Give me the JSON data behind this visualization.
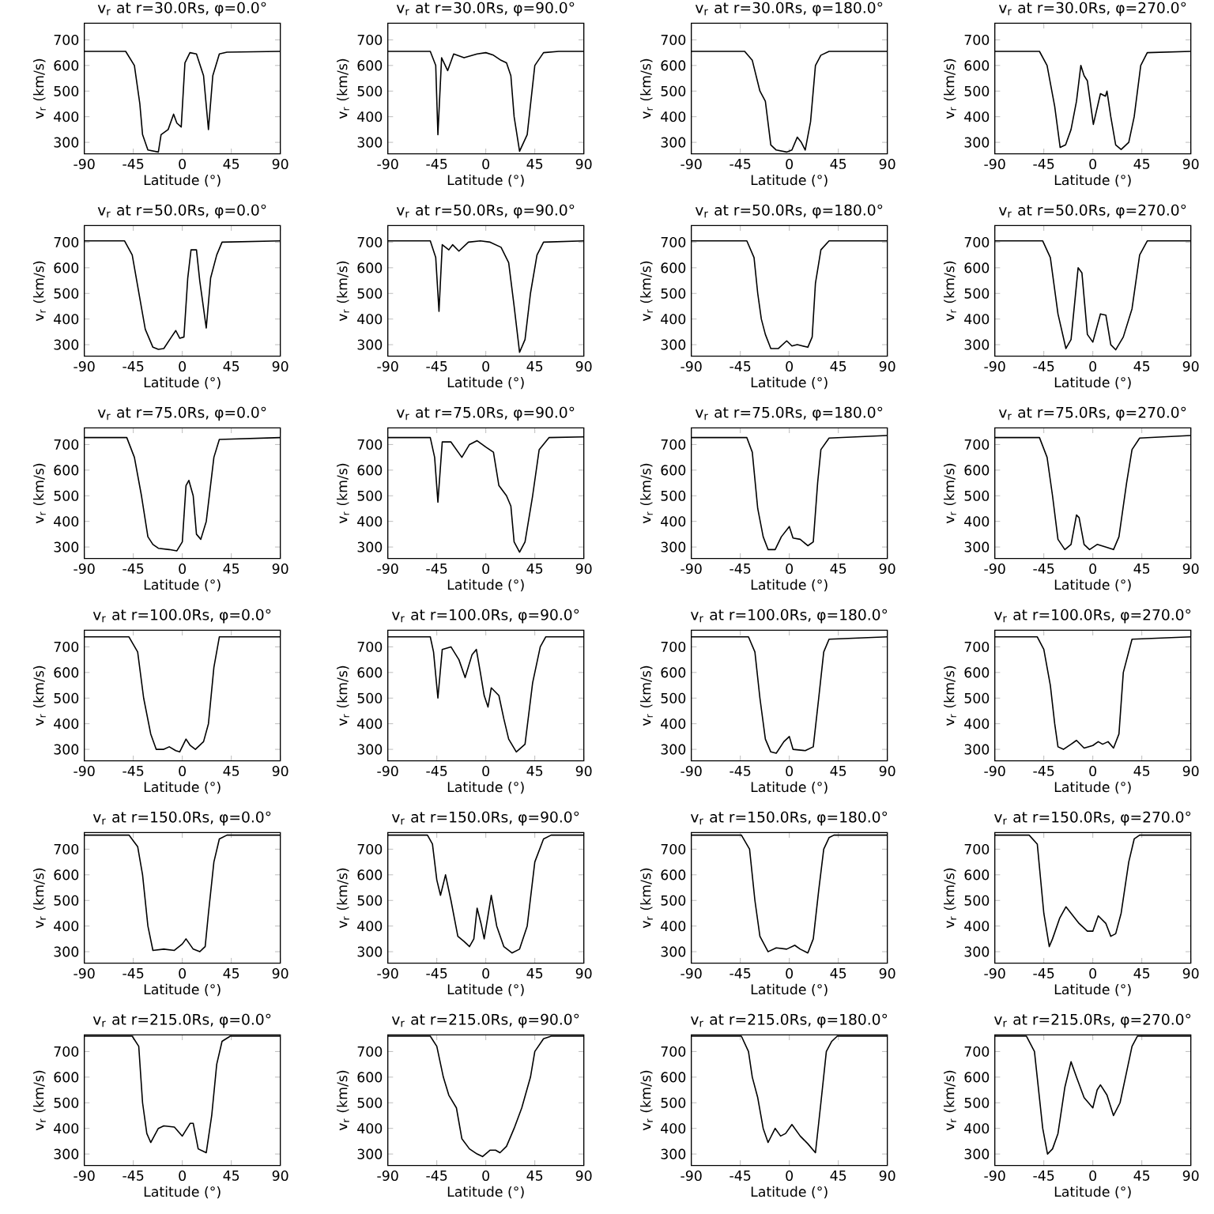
{
  "chart_data": [
    {
      "type": "line",
      "title": "v$_{r}$ at r=30.0Rs, φ=0.0°",
      "xlabel": "Latitude (°)",
      "ylabel": "v$_{r}$ (km/s)",
      "color": "#000000",
      "xlim": [
        -90,
        90
      ],
      "xticks": [
        -90,
        -45,
        0,
        45,
        90
      ],
      "ylim": [
        255,
        765
      ],
      "yticks": [
        300,
        400,
        500,
        600,
        700
      ],
      "x": [
        -90,
        -52,
        -44,
        -39,
        -36.5,
        -31.6,
        -22,
        -19.5,
        -13,
        -8,
        -5,
        -1,
        2.4,
        7,
        13,
        19.5,
        24,
        28,
        34,
        41,
        90
      ],
      "values": [
        655,
        655,
        600,
        450,
        330,
        270,
        262,
        330,
        350,
        410,
        375,
        360,
        610,
        650,
        645,
        560,
        350,
        560,
        645,
        652,
        655
      ]
    },
    {
      "type": "line",
      "title": "v$_{r}$ at r=30.0Rs, φ=90.0°",
      "xlabel": "Latitude (°)",
      "ylabel": "v$_{r}$ (km/s)",
      "color": "#000000",
      "xlim": [
        -90,
        90
      ],
      "xticks": [
        -90,
        -45,
        0,
        45,
        90
      ],
      "ylim": [
        255,
        765
      ],
      "yticks": [
        300,
        400,
        500,
        600,
        700
      ],
      "x": [
        -90,
        -51,
        -46,
        -44,
        -40.6,
        -35,
        -29.5,
        -20,
        -8,
        0,
        7,
        14,
        19,
        23,
        26,
        31,
        38,
        45,
        53,
        67,
        90
      ],
      "values": [
        655,
        655,
        600,
        330,
        630,
        580,
        645,
        630,
        645,
        650,
        640,
        620,
        610,
        560,
        400,
        265,
        330,
        600,
        650,
        655,
        655
      ]
    },
    {
      "type": "line",
      "title": "v$_{r}$ at r=30.0Rs, φ=180.0°",
      "xlabel": "Latitude (°)",
      "ylabel": "v$_{r}$ (km/s)",
      "color": "#000000",
      "xlim": [
        -90,
        90
      ],
      "xticks": [
        -90,
        -45,
        0,
        45,
        90
      ],
      "ylim": [
        255,
        765
      ],
      "yticks": [
        300,
        400,
        500,
        600,
        700
      ],
      "x": [
        -90,
        -41,
        -34,
        -27,
        -22,
        -17,
        -12,
        -2.4,
        2.4,
        7.3,
        11,
        14.6,
        19.5,
        24,
        29,
        36.5,
        90
      ],
      "values": [
        655,
        655,
        620,
        500,
        460,
        290,
        270,
        262,
        270,
        320,
        300,
        270,
        380,
        600,
        640,
        655,
        655
      ]
    },
    {
      "type": "line",
      "title": "v$_{r}$ at r=30.0Rs, φ=270.0°",
      "xlabel": "Latitude (°)",
      "ylabel": "v$_{r}$ (km/s)",
      "color": "#000000",
      "xlim": [
        -90,
        90
      ],
      "xticks": [
        -90,
        -45,
        0,
        45,
        90
      ],
      "ylim": [
        255,
        765
      ],
      "yticks": [
        300,
        400,
        500,
        600,
        700
      ],
      "x": [
        -90,
        -49,
        -42,
        -35,
        -30,
        -25,
        -20,
        -15,
        -11,
        -8,
        -5,
        0.5,
        7,
        11.6,
        13,
        16.5,
        21,
        26,
        33,
        38,
        44,
        50,
        90
      ],
      "values": [
        655,
        655,
        600,
        440,
        280,
        290,
        350,
        460,
        600,
        560,
        540,
        370,
        490,
        480,
        500,
        400,
        290,
        272,
        300,
        400,
        600,
        650,
        655
      ]
    },
    {
      "type": "line",
      "title": "v$_{r}$ at r=50.0Rs, φ=0.0°",
      "xlabel": "Latitude (°)",
      "ylabel": "v$_{r}$ (km/s)",
      "color": "#000000",
      "xlim": [
        -90,
        90
      ],
      "xticks": [
        -90,
        -45,
        0,
        45,
        90
      ],
      "ylim": [
        255,
        765
      ],
      "yticks": [
        300,
        400,
        500,
        600,
        700
      ],
      "x": [
        -90,
        -53,
        -46,
        -39,
        -34,
        -27,
        -22,
        -17,
        -10,
        -6,
        -2.4,
        1.5,
        5,
        8,
        13,
        16,
        22,
        26,
        31.6,
        36.5,
        90
      ],
      "values": [
        705,
        705,
        650,
        480,
        360,
        290,
        282,
        285,
        330,
        355,
        325,
        330,
        560,
        670,
        670,
        550,
        365,
        560,
        650,
        700,
        705
      ]
    },
    {
      "type": "line",
      "title": "v$_{r}$ at r=50.0Rs, φ=90.0°",
      "xlabel": "Latitude (°)",
      "ylabel": "v$_{r}$ (km/s)",
      "color": "#000000",
      "xlim": [
        -90,
        90
      ],
      "xticks": [
        -90,
        -45,
        0,
        45,
        90
      ],
      "ylim": [
        255,
        765
      ],
      "yticks": [
        300,
        400,
        500,
        600,
        700
      ],
      "x": [
        -90,
        -51,
        -46,
        -43,
        -40,
        -34,
        -30.5,
        -24.7,
        -16,
        -5,
        4,
        14,
        21,
        26,
        31,
        36,
        41,
        47,
        53,
        90
      ],
      "values": [
        705,
        705,
        640,
        430,
        690,
        670,
        690,
        665,
        700,
        705,
        700,
        680,
        620,
        450,
        270,
        320,
        500,
        650,
        700,
        705
      ]
    },
    {
      "type": "line",
      "title": "v$_{r}$ at r=50.0Rs, φ=180.0°",
      "xlabel": "Latitude (°)",
      "ylabel": "v$_{r}$ (km/s)",
      "color": "#000000",
      "xlim": [
        -90,
        90
      ],
      "xticks": [
        -90,
        -45,
        0,
        45,
        90
      ],
      "ylim": [
        255,
        765
      ],
      "yticks": [
        300,
        400,
        500,
        600,
        700
      ],
      "x": [
        -90,
        -39,
        -32.4,
        -29,
        -25.7,
        -22,
        -17,
        -10,
        -2.4,
        2.4,
        7.3,
        17,
        21,
        24,
        29,
        36.5,
        90
      ],
      "values": [
        705,
        705,
        640,
        500,
        400,
        340,
        285,
        285,
        315,
        295,
        300,
        290,
        330,
        540,
        670,
        705,
        705
      ]
    },
    {
      "type": "line",
      "title": "v$_{r}$ at r=50.0Rs, φ=270.0°",
      "xlabel": "Latitude (°)",
      "ylabel": "v$_{r}$ (km/s)",
      "color": "#000000",
      "xlim": [
        -90,
        90
      ],
      "xticks": [
        -90,
        -45,
        0,
        45,
        90
      ],
      "ylim": [
        255,
        765
      ],
      "yticks": [
        300,
        400,
        500,
        600,
        700
      ],
      "x": [
        -90,
        -46,
        -39,
        -32,
        -24.7,
        -20,
        -13.5,
        -10,
        -5,
        0,
        7,
        12,
        16.5,
        21,
        28,
        36,
        43,
        50,
        90
      ],
      "values": [
        705,
        705,
        640,
        420,
        285,
        320,
        600,
        580,
        340,
        310,
        420,
        415,
        300,
        280,
        330,
        440,
        650,
        705,
        705
      ]
    },
    {
      "type": "line",
      "title": "v$_{r}$ at r=75.0Rs, φ=0.0°",
      "xlabel": "Latitude (°)",
      "ylabel": "v$_{r}$ (km/s)",
      "color": "#000000",
      "xlim": [
        -90,
        90
      ],
      "xticks": [
        -90,
        -45,
        0,
        45,
        90
      ],
      "ylim": [
        255,
        765
      ],
      "yticks": [
        300,
        400,
        500,
        600,
        700
      ],
      "x": [
        -90,
        -51,
        -44,
        -37.5,
        -31.6,
        -27,
        -22,
        -12,
        -5,
        0,
        3.4,
        6,
        10,
        13,
        17,
        22,
        29,
        34,
        90
      ],
      "values": [
        727,
        727,
        650,
        500,
        340,
        310,
        295,
        290,
        285,
        320,
        540,
        560,
        500,
        350,
        330,
        400,
        650,
        720,
        727
      ]
    },
    {
      "type": "line",
      "title": "v$_{r}$ at r=75.0Rs, φ=90.0°",
      "xlabel": "Latitude (°)",
      "ylabel": "v$_{r}$ (km/s)",
      "color": "#000000",
      "xlim": [
        -90,
        90
      ],
      "xticks": [
        -90,
        -45,
        0,
        45,
        90
      ],
      "ylim": [
        255,
        765
      ],
      "yticks": [
        300,
        400,
        500,
        600,
        700
      ],
      "x": [
        -90,
        -51,
        -47,
        -44,
        -40,
        -32,
        -22,
        -15,
        -8,
        0,
        7,
        12,
        19,
        23,
        26,
        31,
        36,
        43,
        49,
        58,
        90
      ],
      "values": [
        727,
        727,
        650,
        475,
        710,
        710,
        650,
        700,
        715,
        690,
        670,
        540,
        500,
        460,
        320,
        280,
        320,
        500,
        680,
        727,
        730
      ]
    },
    {
      "type": "line",
      "title": "v$_{r}$ at r=75.0Rs, φ=180.0°",
      "xlabel": "Latitude (°)",
      "ylabel": "v$_{r}$ (km/s)",
      "color": "#000000",
      "xlim": [
        -90,
        90
      ],
      "xticks": [
        -90,
        -45,
        0,
        45,
        90
      ],
      "ylim": [
        255,
        765
      ],
      "yticks": [
        300,
        400,
        500,
        600,
        700
      ],
      "x": [
        -90,
        -39,
        -34,
        -29,
        -24,
        -19.5,
        -13,
        -7.3,
        0,
        3.4,
        10,
        17,
        22,
        26,
        29,
        36.5,
        90
      ],
      "values": [
        727,
        727,
        670,
        450,
        340,
        290,
        290,
        340,
        380,
        335,
        330,
        305,
        320,
        550,
        680,
        725,
        735
      ]
    },
    {
      "type": "line",
      "title": "v$_{r}$ at r=75.0Rs, φ=270.0°",
      "xlabel": "Latitude (°)",
      "ylabel": "v$_{r}$ (km/s)",
      "color": "#000000",
      "xlim": [
        -90,
        90
      ],
      "xticks": [
        -90,
        -45,
        0,
        45,
        90
      ],
      "ylim": [
        255,
        765
      ],
      "yticks": [
        300,
        400,
        500,
        600,
        700
      ],
      "x": [
        -90,
        -49,
        -42,
        -37,
        -32,
        -25.7,
        -20,
        -15,
        -12.6,
        -8,
        -3,
        4,
        11.6,
        19,
        24,
        31,
        36,
        43,
        90
      ],
      "values": [
        727,
        727,
        650,
        500,
        330,
        290,
        310,
        425,
        415,
        310,
        290,
        310,
        300,
        290,
        340,
        550,
        680,
        725,
        735
      ]
    },
    {
      "type": "line",
      "title": "v$_{r}$ at r=100.0Rs, φ=0.0°",
      "xlabel": "Latitude (°)",
      "ylabel": "v$_{r}$ (km/s)",
      "color": "#000000",
      "xlim": [
        -90,
        90
      ],
      "xticks": [
        -90,
        -45,
        0,
        45,
        90
      ],
      "ylim": [
        255,
        765
      ],
      "yticks": [
        300,
        400,
        500,
        600,
        700
      ],
      "x": [
        -90,
        -49,
        -41,
        -35.5,
        -29,
        -24,
        -17,
        -12,
        -6,
        -2.4,
        3.4,
        7.3,
        12,
        19.5,
        24,
        29,
        34,
        90
      ],
      "values": [
        739,
        739,
        680,
        500,
        360,
        300,
        300,
        310,
        295,
        290,
        340,
        315,
        300,
        330,
        400,
        620,
        739,
        739
      ]
    },
    {
      "type": "line",
      "title": "v$_{r}$ at r=100.0Rs, φ=90.0°",
      "xlabel": "Latitude (°)",
      "ylabel": "v$_{r}$ (km/s)",
      "color": "#000000",
      "xlim": [
        -90,
        90
      ],
      "xticks": [
        -90,
        -45,
        0,
        45,
        90
      ],
      "ylim": [
        255,
        765
      ],
      "yticks": [
        300,
        400,
        500,
        600,
        700
      ],
      "x": [
        -90,
        -51,
        -48,
        -44,
        -40,
        -32,
        -24.7,
        -19,
        -12.6,
        -8.7,
        -5,
        -1.5,
        2,
        5,
        12,
        16.5,
        21,
        28,
        36,
        43,
        50,
        55,
        90
      ],
      "values": [
        739,
        739,
        680,
        500,
        690,
        700,
        650,
        580,
        670,
        690,
        600,
        510,
        465,
        540,
        510,
        420,
        340,
        290,
        320,
        560,
        700,
        739,
        739
      ]
    },
    {
      "type": "line",
      "title": "v$_{r}$ at r=100.0Rs, φ=180.0°",
      "xlabel": "Latitude (°)",
      "ylabel": "v$_{r}$ (km/s)",
      "color": "#000000",
      "xlim": [
        -90,
        90
      ],
      "xticks": [
        -90,
        -45,
        0,
        45,
        90
      ],
      "ylim": [
        255,
        765
      ],
      "yticks": [
        300,
        400,
        500,
        600,
        700
      ],
      "x": [
        -90,
        -37.5,
        -31.6,
        -27,
        -22,
        -17,
        -12,
        -5,
        0,
        3.4,
        14.6,
        22,
        27,
        31.6,
        36.5,
        90
      ],
      "values": [
        739,
        739,
        680,
        500,
        340,
        290,
        285,
        330,
        350,
        300,
        295,
        310,
        500,
        680,
        730,
        739
      ]
    },
    {
      "type": "line",
      "title": "v$_{r}$ at r=100.0Rs, φ=270.0°",
      "xlabel": "Latitude (°)",
      "ylabel": "v$_{r}$ (km/s)",
      "color": "#000000",
      "xlim": [
        -90,
        90
      ],
      "xticks": [
        -90,
        -45,
        0,
        45,
        90
      ],
      "ylim": [
        255,
        765
      ],
      "yticks": [
        300,
        400,
        500,
        600,
        700
      ],
      "x": [
        -90,
        -51,
        -45,
        -39,
        -35,
        -32,
        -27,
        -20,
        -15,
        -8,
        0,
        5,
        9,
        14,
        19,
        24,
        28,
        36,
        90
      ],
      "values": [
        739,
        739,
        690,
        550,
        400,
        310,
        300,
        320,
        335,
        305,
        315,
        330,
        320,
        330,
        305,
        360,
        600,
        730,
        739
      ]
    },
    {
      "type": "line",
      "title": "v$_{r}$ at r=150.0Rs, φ=0.0°",
      "xlabel": "Latitude (°)",
      "ylabel": "v$_{r}$ (km/s)",
      "color": "#000000",
      "xlim": [
        -90,
        90
      ],
      "xticks": [
        -90,
        -45,
        0,
        45,
        90
      ],
      "ylim": [
        255,
        765
      ],
      "yticks": [
        300,
        400,
        500,
        600,
        700
      ],
      "x": [
        -90,
        -49,
        -41,
        -36.5,
        -31.6,
        -27,
        -17,
        -7.3,
        0,
        3.4,
        10,
        16,
        21,
        24,
        29,
        34,
        41,
        90
      ],
      "values": [
        755,
        755,
        710,
        600,
        400,
        305,
        310,
        305,
        330,
        350,
        310,
        300,
        320,
        450,
        650,
        740,
        755,
        755
      ]
    },
    {
      "type": "line",
      "title": "v$_{r}$ at r=150.0Rs, φ=90.0°",
      "xlabel": "Latitude (°)",
      "ylabel": "v$_{r}$ (km/s)",
      "color": "#000000",
      "xlim": [
        -90,
        90
      ],
      "xticks": [
        -90,
        -45,
        0,
        45,
        90
      ],
      "ylim": [
        255,
        765
      ],
      "yticks": [
        300,
        400,
        500,
        600,
        700
      ],
      "x": [
        -90,
        -53.6,
        -49,
        -45,
        -41.6,
        -37,
        -32,
        -25.7,
        -20,
        -15,
        -11,
        -8,
        -4.4,
        -1.5,
        2,
        5,
        10,
        16.5,
        24,
        31,
        38,
        45,
        53,
        60,
        90
      ],
      "values": [
        755,
        755,
        720,
        580,
        520,
        600,
        500,
        360,
        340,
        320,
        350,
        470,
        410,
        350,
        440,
        520,
        400,
        320,
        295,
        310,
        400,
        650,
        740,
        755,
        755
      ]
    },
    {
      "type": "line",
      "title": "v$_{r}$ at r=150.0Rs, φ=180.0°",
      "xlabel": "Latitude (°)",
      "ylabel": "v$_{r}$ (km/s)",
      "color": "#000000",
      "xlim": [
        -90,
        90
      ],
      "xticks": [
        -90,
        -45,
        0,
        45,
        90
      ],
      "ylim": [
        255,
        765
      ],
      "yticks": [
        300,
        400,
        500,
        600,
        700
      ],
      "x": [
        -90,
        -44,
        -36.5,
        -31.6,
        -27,
        -19.5,
        -12,
        -2.4,
        5,
        10,
        17,
        22,
        27,
        31.6,
        36.5,
        41,
        90
      ],
      "values": [
        755,
        755,
        700,
        500,
        360,
        300,
        315,
        310,
        325,
        310,
        295,
        350,
        540,
        700,
        745,
        755,
        755
      ]
    },
    {
      "type": "line",
      "title": "v$_{r}$ at r=150.0Rs, φ=270.0°",
      "xlabel": "Latitude (°)",
      "ylabel": "v$_{r}$ (km/s)",
      "color": "#000000",
      "xlim": [
        -90,
        90
      ],
      "xticks": [
        -90,
        -45,
        0,
        45,
        90
      ],
      "ylim": [
        255,
        765
      ],
      "yticks": [
        300,
        400,
        500,
        600,
        700
      ],
      "x": [
        -90,
        -58.5,
        -51,
        -45,
        -40,
        -37,
        -30.5,
        -24.7,
        -20,
        -12.6,
        -5,
        0,
        5,
        12,
        16.5,
        21,
        26,
        33,
        38,
        43,
        90
      ],
      "values": [
        755,
        755,
        720,
        450,
        320,
        350,
        430,
        475,
        450,
        410,
        380,
        380,
        440,
        410,
        360,
        370,
        450,
        650,
        740,
        755,
        755
      ]
    },
    {
      "type": "line",
      "title": "v$_{r}$ at r=215.0Rs, φ=0.0°",
      "xlabel": "Latitude (°)",
      "ylabel": "v$_{r}$ (km/s)",
      "color": "#000000",
      "xlim": [
        -90,
        90
      ],
      "xticks": [
        -90,
        -45,
        0,
        45,
        90
      ],
      "ylim": [
        255,
        765
      ],
      "yticks": [
        300,
        400,
        500,
        600,
        700
      ],
      "x": [
        -90,
        -46,
        -40,
        -36.5,
        -32.6,
        -29,
        -22,
        -17,
        -7.3,
        0,
        7.3,
        10,
        14.6,
        22,
        27,
        31.6,
        36.5,
        44,
        90
      ],
      "values": [
        760,
        760,
        720,
        500,
        380,
        345,
        400,
        410,
        405,
        370,
        420,
        420,
        320,
        305,
        450,
        650,
        740,
        760,
        760
      ]
    },
    {
      "type": "line",
      "title": "v$_{r}$ at r=215.0Rs, φ=90.0°",
      "xlabel": "Latitude (°)",
      "ylabel": "v$_{r}$ (km/s)",
      "color": "#000000",
      "xlim": [
        -90,
        90
      ],
      "xticks": [
        -90,
        -45,
        0,
        45,
        90
      ],
      "ylim": [
        255,
        765
      ],
      "yticks": [
        300,
        400,
        500,
        600,
        700
      ],
      "x": [
        -90,
        -51,
        -45,
        -39,
        -34,
        -27,
        -22,
        -15,
        -8,
        -3,
        4,
        9,
        13,
        19,
        26,
        33,
        41,
        45,
        53,
        60,
        90
      ],
      "values": [
        760,
        760,
        720,
        600,
        530,
        480,
        360,
        320,
        300,
        290,
        315,
        315,
        305,
        330,
        400,
        480,
        600,
        700,
        750,
        760,
        760
      ]
    },
    {
      "type": "line",
      "title": "v$_{r}$ at r=215.0Rs, φ=180.0°",
      "xlabel": "Latitude (°)",
      "ylabel": "v$_{r}$ (km/s)",
      "color": "#000000",
      "xlim": [
        -90,
        90
      ],
      "xticks": [
        -90,
        -45,
        0,
        45,
        90
      ],
      "ylim": [
        255,
        765
      ],
      "yticks": [
        300,
        400,
        500,
        600,
        700
      ],
      "x": [
        -90,
        -44,
        -37.5,
        -34,
        -29,
        -24,
        -19.5,
        -13,
        -8,
        -3.4,
        2.4,
        10,
        17,
        24,
        29,
        34,
        39,
        44,
        90
      ],
      "values": [
        760,
        760,
        700,
        600,
        520,
        400,
        345,
        400,
        370,
        380,
        415,
        370,
        340,
        305,
        500,
        700,
        740,
        760,
        760
      ]
    },
    {
      "type": "line",
      "title": "v$_{r}$ at r=215.0Rs, φ=270.0°",
      "xlabel": "Latitude (°)",
      "ylabel": "v$_{r}$ (km/s)",
      "color": "#000000",
      "xlim": [
        -90,
        90
      ],
      "xticks": [
        -90,
        -45,
        0,
        45,
        90
      ],
      "ylim": [
        255,
        765
      ],
      "yticks": [
        300,
        400,
        500,
        600,
        700
      ],
      "x": [
        -90,
        -61,
        -53.6,
        -46,
        -41.6,
        -37,
        -32,
        -25.7,
        -20,
        -15,
        -8,
        0,
        4,
        7,
        13,
        19,
        25,
        31,
        36,
        41,
        90
      ],
      "values": [
        760,
        760,
        700,
        400,
        300,
        320,
        380,
        560,
        660,
        600,
        520,
        480,
        550,
        570,
        530,
        450,
        500,
        620,
        720,
        760,
        760
      ]
    }
  ]
}
